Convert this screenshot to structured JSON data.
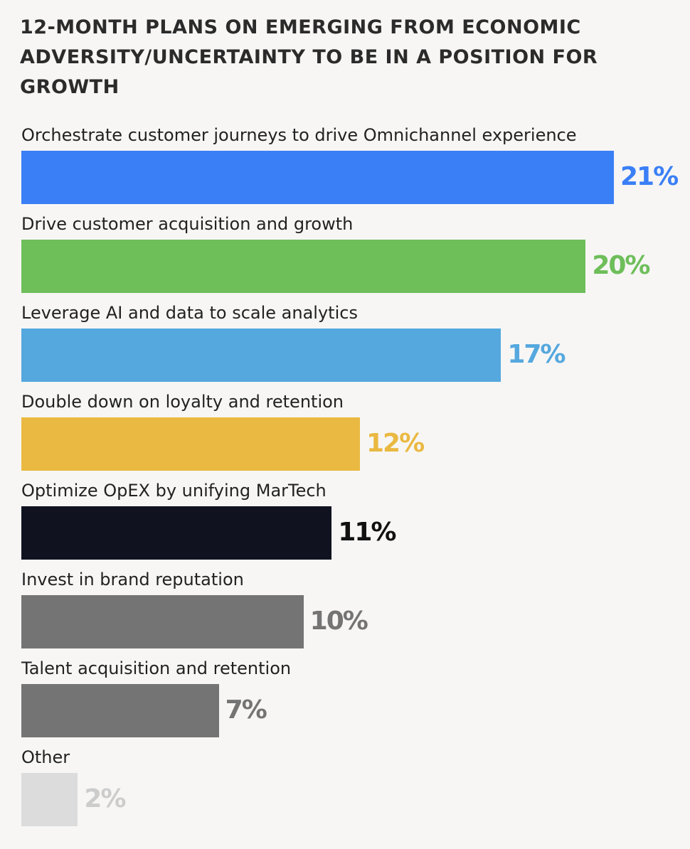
{
  "chart_data": {
    "type": "bar",
    "orientation": "horizontal",
    "title": "12-MONTH PLANS ON EMERGING FROM ECONOMIC ADVERSITY/UNCERTAINTY TO BE IN A POSITION FOR GROWTH",
    "categories": [
      "Orchestrate customer journeys to drive Omnichannel experience",
      "Drive customer acquisition and growth",
      "Leverage AI and data to scale analytics",
      "Double down on loyalty and retention",
      "Optimize OpEX by unifying MarTech",
      "Invest in brand reputation",
      "Talent acquisition and retention",
      "Other"
    ],
    "values": [
      21,
      20,
      17,
      12,
      11,
      10,
      7,
      2
    ],
    "data_labels": [
      "21%",
      "20%",
      "17%",
      "12%",
      "11%",
      "10%",
      "7%",
      "2%"
    ],
    "unit": "%",
    "bar_colors": [
      "#3a7ff6",
      "#6ebe5a",
      "#55a8de",
      "#eab942",
      "#10131f",
      "#747474",
      "#747474",
      "#dcdcdc"
    ],
    "label_colors": [
      "#3a7ff6",
      "#6ebe5a",
      "#55a8de",
      "#eab942",
      "#111111",
      "#747474",
      "#747474",
      "#cccccc"
    ],
    "xlim": [
      0,
      21
    ],
    "grid": false,
    "legend": "none",
    "background": "#f7f6f5"
  }
}
